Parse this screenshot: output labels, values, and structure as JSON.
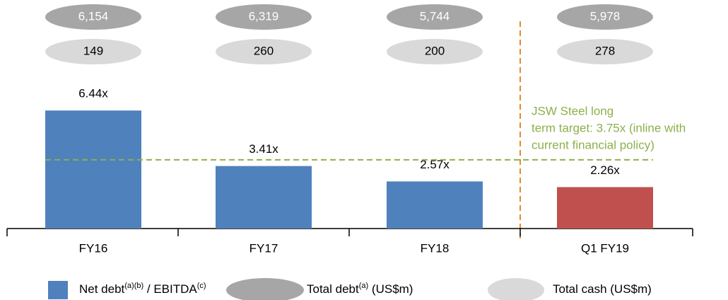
{
  "chart_data": {
    "type": "bar",
    "categories": [
      "FY16",
      "FY17",
      "FY18",
      "Q1 FY19"
    ],
    "series": [
      {
        "name": [
          {
            "text": "Net debt",
            "sup": false
          },
          {
            "text": "(a)(b)",
            "sup": true
          },
          {
            "text": " / EBITDA",
            "sup": false
          },
          {
            "text": "(c)",
            "sup": true
          }
        ],
        "color": "#4f81bd",
        "colors": [
          "#4f81bd",
          "#4f81bd",
          "#4f81bd",
          "#c0504d"
        ],
        "values": [
          6.44,
          3.41,
          2.57,
          2.26
        ],
        "value_labels": [
          "6.44x",
          "3.41x",
          "2.57x",
          "2.26x"
        ]
      }
    ],
    "total_debt": {
      "name": [
        {
          "text": "Total debt",
          "sup": false
        },
        {
          "text": "(a)",
          "sup": true
        },
        {
          "text": " (US$m)",
          "sup": false
        }
      ],
      "color": "#a6a6a6",
      "values": [
        6154,
        6319,
        5744,
        5978
      ],
      "value_labels": [
        "6,154",
        "6,319",
        "5,744",
        "5,978"
      ]
    },
    "total_cash": {
      "name": [
        {
          "text": "Total cash (US$m)",
          "sup": false
        }
      ],
      "color": "#d9d9d9",
      "values": [
        149,
        260,
        200,
        278
      ],
      "value_labels": [
        "149",
        "260",
        "200",
        "278"
      ]
    },
    "reference_line": {
      "value": 3.75,
      "color": "#8db04a",
      "annotation": [
        "JSW Steel long",
        "term target: 3.75x (inline with",
        "current financial policy)"
      ]
    }
  }
}
